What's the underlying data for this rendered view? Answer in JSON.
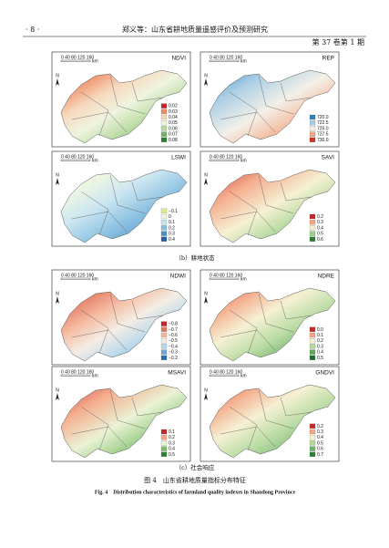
{
  "header": {
    "page": "· 8 ·",
    "title": "郑义等：山东省耕地质量遥感评价及预测研究",
    "issue": "第 37 卷第 1 期"
  },
  "panels": [
    {
      "label": "NDVI",
      "north": "N",
      "scale": "0 40 80 120 160",
      "unit": "km",
      "legend": [
        {
          "label": "0.02",
          "color": "#c62828"
        },
        {
          "label": "0.03",
          "color": "#ef8a62"
        },
        {
          "label": "0.04",
          "color": "#f6d6b8"
        },
        {
          "label": "0.05",
          "color": "#eef3dc"
        },
        {
          "label": "0.06",
          "color": "#b5d99c"
        },
        {
          "label": "0.07",
          "color": "#6fb36a"
        },
        {
          "label": "0.08",
          "color": "#2e7d32"
        }
      ]
    },
    {
      "label": "REP",
      "north": "N",
      "scale": "0 40 80 120 160",
      "unit": "km",
      "legend": [
        {
          "label": "720.0",
          "color": "#2c7fb8"
        },
        {
          "label": "722.5",
          "color": "#a6cbe3"
        },
        {
          "label": "725.0",
          "color": "#f2efe6"
        },
        {
          "label": "727.5",
          "color": "#f4a582"
        },
        {
          "label": "730.0",
          "color": "#d6301f"
        }
      ]
    },
    {
      "label": "LSWI",
      "north": "N",
      "scale": "0 40 80 120 160",
      "unit": "km",
      "legend": [
        {
          "label": "−0.1",
          "color": "#d9ef8b"
        },
        {
          "label": "0",
          "color": "#edf6e0"
        },
        {
          "label": "0.1",
          "color": "#c6e3f0"
        },
        {
          "label": "0.2",
          "color": "#86bfe0"
        },
        {
          "label": "0.3",
          "color": "#4a8fca"
        },
        {
          "label": "0.4",
          "color": "#2a5fa8"
        }
      ]
    },
    {
      "label": "SAVI",
      "north": "N",
      "scale": "0 40 80 120 160",
      "unit": "km",
      "legend": [
        {
          "label": "0.2",
          "color": "#c62828"
        },
        {
          "label": "0.3",
          "color": "#f4a582"
        },
        {
          "label": "0.4",
          "color": "#f5f0d0"
        },
        {
          "label": "0.5",
          "color": "#9ccf87"
        },
        {
          "label": "0.6",
          "color": "#2e7d32"
        }
      ]
    },
    {
      "label": "NDWI",
      "north": "N",
      "scale": "0 40 80 120 160",
      "unit": "km",
      "legend": [
        {
          "label": "−0.8",
          "color": "#c62828"
        },
        {
          "label": "−0.7",
          "color": "#e4775a"
        },
        {
          "label": "−0.6",
          "color": "#f4b69a"
        },
        {
          "label": "−0.5",
          "color": "#f3ece2"
        },
        {
          "label": "−0.4",
          "color": "#b6d6ea"
        },
        {
          "label": "−0.3",
          "color": "#6ea7d2"
        },
        {
          "label": "−0.2",
          "color": "#2b6aad"
        }
      ]
    },
    {
      "label": "NDRE",
      "north": "N",
      "scale": "0 40 80 120 160",
      "unit": "km",
      "legend": [
        {
          "label": "0.0",
          "color": "#c62828"
        },
        {
          "label": "0.1",
          "color": "#f4a582"
        },
        {
          "label": "0.2",
          "color": "#f5f0d0"
        },
        {
          "label": "0.3",
          "color": "#b5d99c"
        },
        {
          "label": "0.4",
          "color": "#5fa85a"
        },
        {
          "label": "0.5",
          "color": "#1f6b2a"
        }
      ]
    },
    {
      "label": "MSAVI",
      "north": "N",
      "scale": "0 40 80 120 160",
      "unit": "km",
      "legend": [
        {
          "label": "0.1",
          "color": "#c62828"
        },
        {
          "label": "0.2",
          "color": "#f4a582"
        },
        {
          "label": "0.3",
          "color": "#e9f2d2"
        },
        {
          "label": "0.4",
          "color": "#7fbf6a"
        },
        {
          "label": "0.5",
          "color": "#2e7d32"
        }
      ]
    },
    {
      "label": "GNDVI",
      "north": "N",
      "scale": "0 40 80 120 160",
      "unit": "km",
      "legend": [
        {
          "label": "0.2",
          "color": "#c62828"
        },
        {
          "label": "0.3",
          "color": "#f4a582"
        },
        {
          "label": "0.4",
          "color": "#f5f0d0"
        },
        {
          "label": "0.5",
          "color": "#b5d99c"
        },
        {
          "label": "0.6",
          "color": "#6fb36a"
        },
        {
          "label": "0.7",
          "color": "#2e7d32"
        }
      ]
    }
  ],
  "captions": [
    "（b）耕地状态",
    "（c）社会响应"
  ],
  "figure": {
    "title": "图 4　山东省耕地质量指标分布特征",
    "english": "Fig. 4　Distribution characteristics of farmland quality indexes in Shandong Province"
  }
}
